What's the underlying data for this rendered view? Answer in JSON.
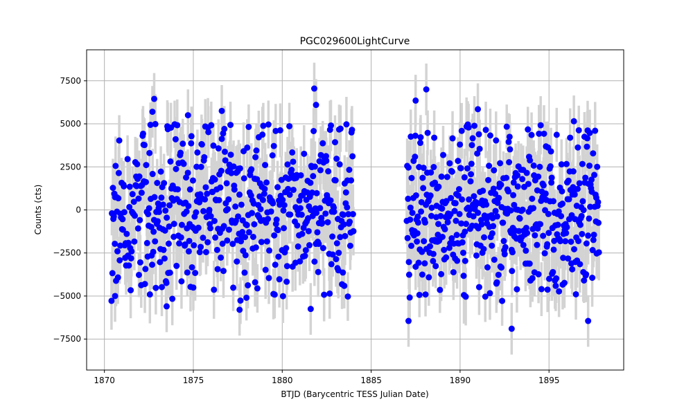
{
  "chart_data": {
    "type": "scatter",
    "title": "PGC029600LightCurve",
    "xlabel": "BTJD (Barycentric TESS Julian Date)",
    "ylabel": "Counts (cts)",
    "xlim": [
      1869.0,
      1899.2
    ],
    "ylim": [
      -9300,
      9300
    ],
    "xticks": [
      1870,
      1875,
      1880,
      1885,
      1890,
      1895
    ],
    "yticks": [
      -7500,
      -5000,
      -2500,
      0,
      2500,
      5000,
      7500
    ],
    "grid": true,
    "legend": "none",
    "segments": [
      {
        "x_start": 1870.4,
        "x_end": 1884.0
      },
      {
        "x_start": 1887.0,
        "x_end": 1897.8
      }
    ],
    "error_bar_typical": 1500,
    "n_points_per_segment": [
      530,
      470
    ],
    "point_std": 2500,
    "highlighted_points": [
      {
        "x": 1872.8,
        "y": 6450
      },
      {
        "x": 1872.7,
        "y": 5700
      },
      {
        "x": 1874.7,
        "y": 5500
      },
      {
        "x": 1876.6,
        "y": 5750
      },
      {
        "x": 1881.8,
        "y": 7050
      },
      {
        "x": 1881.9,
        "y": 6100
      },
      {
        "x": 1888.1,
        "y": 7000
      },
      {
        "x": 1887.5,
        "y": 6350
      },
      {
        "x": 1891.0,
        "y": 5850
      },
      {
        "x": 1896.4,
        "y": 5150
      },
      {
        "x": 1877.6,
        "y": -5800
      },
      {
        "x": 1881.6,
        "y": -5750
      },
      {
        "x": 1887.1,
        "y": -6450
      },
      {
        "x": 1892.9,
        "y": -6900
      },
      {
        "x": 1897.2,
        "y": -6450
      },
      {
        "x": 1873.5,
        "y": -5600
      },
      {
        "x": 1870.6,
        "y": -5000
      }
    ],
    "colors": {
      "points": "#0000ff",
      "error_bars": "#d3d3d3",
      "grid": "#b0b0b0",
      "axes": "#000000"
    }
  }
}
